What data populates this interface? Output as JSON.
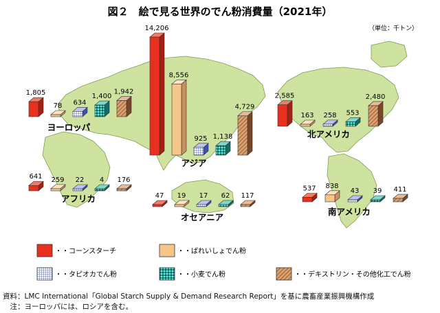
{
  "title": "図２　絵で見る世界のでん粉消費量（2021年）",
  "unit": "（単位：千トン）",
  "chart_data": {
    "type": "bar",
    "title": "図２　絵で見る世界のでん粉消費量（2021年）",
    "unit": "（単位：千トン）",
    "series": [
      {
        "name": "コーンスターチ",
        "color": "#e8301e",
        "pattern": "solid"
      },
      {
        "name": "ばれいしょでん粉",
        "color": "#f6c58a",
        "pattern": "plain"
      },
      {
        "name": "タピオカでん粉",
        "color": "#6c7fe0",
        "pattern": "grid"
      },
      {
        "name": "小麦でん粉",
        "color": "#22b2a6",
        "pattern": "dots"
      },
      {
        "name": "デキストリン・その他化工でん粉",
        "color": "#c07d52",
        "pattern": "hatch"
      }
    ],
    "regions": [
      {
        "name": "ヨーロッパ",
        "values": [
          1805,
          78,
          634,
          1400,
          1942
        ],
        "value_labels": [
          "1,805",
          "78",
          "634",
          "1,400",
          "1,942"
        ]
      },
      {
        "name": "アジア",
        "values": [
          14206,
          8556,
          925,
          1138,
          4729
        ],
        "value_labels": [
          "14,206",
          "8,556",
          "925",
          "1,138",
          "4,729"
        ]
      },
      {
        "name": "北アメリカ",
        "values": [
          2585,
          163,
          258,
          553,
          2480
        ],
        "value_labels": [
          "2,585",
          "163",
          "258",
          "553",
          "2,480"
        ]
      },
      {
        "name": "アフリカ",
        "values": [
          641,
          259,
          22,
          4,
          176
        ],
        "value_labels": [
          "641",
          "259",
          "22",
          "4",
          "176"
        ]
      },
      {
        "name": "オセアニア",
        "values": [
          47,
          19,
          17,
          62,
          117
        ],
        "value_labels": [
          "47",
          "19",
          "17",
          "62",
          "117"
        ]
      },
      {
        "name": "南アメリカ",
        "values": [
          537,
          838,
          43,
          39,
          411
        ],
        "value_labels": [
          "537",
          "838",
          "43",
          "39",
          "411"
        ]
      }
    ]
  },
  "legend": [
    {
      "label": "・・コーンスターチ"
    },
    {
      "label": "・・ばれいしょでん粉"
    },
    {
      "label": "・・タピオカでん粉"
    },
    {
      "label": "・・小麦でん粉"
    },
    {
      "label": "・・デキストリン・その他化工でん粉"
    }
  ],
  "notes": {
    "source": "資料：LMC International「Global Starch Supply & Demand Research Report」を基に農畜産業振興機構作成",
    "note": "　注：ヨーロッパには、ロシアを含む。"
  }
}
